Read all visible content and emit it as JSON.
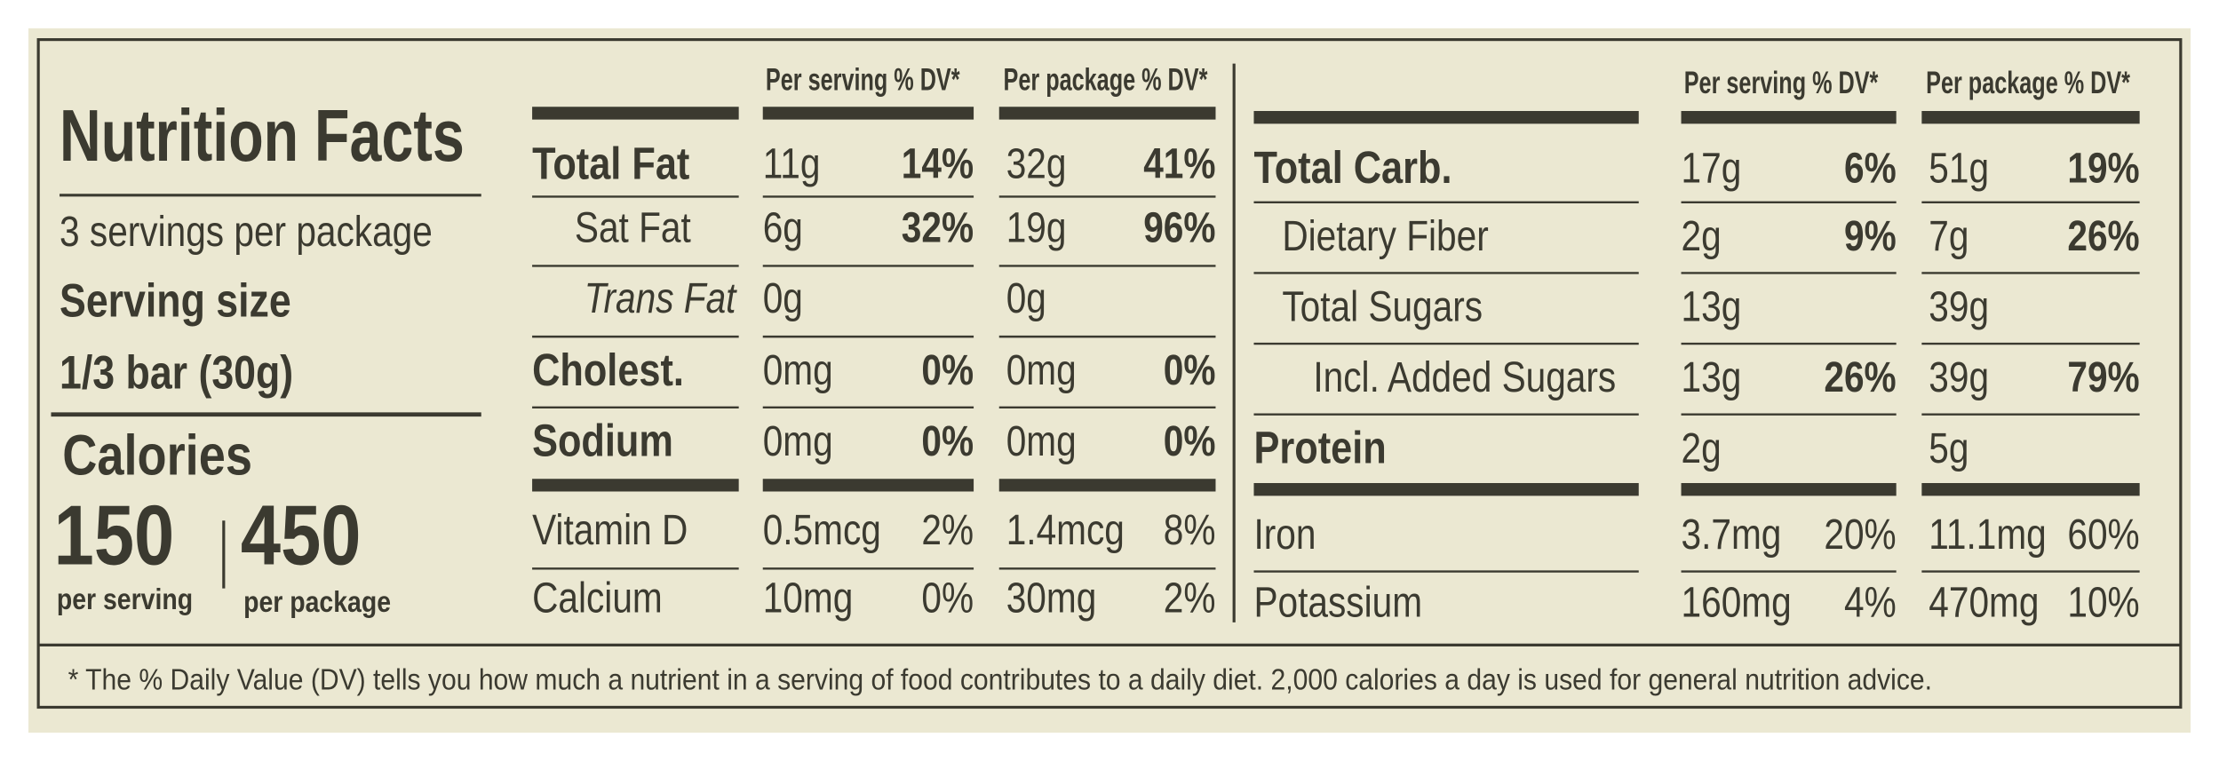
{
  "header": {
    "title": "Nutrition Facts",
    "servings": "3 servings per package",
    "serving_size_label": "Serving size",
    "serving_size": "1/3 bar (30g)",
    "calories_label": "Calories",
    "calories": [
      {
        "amount": "150",
        "unit": "per serving"
      },
      {
        "amount": "450",
        "unit": "per package"
      }
    ]
  },
  "left": {
    "columns": [
      "Per serving % DV*",
      "Per package % DV*"
    ],
    "rows": [
      {
        "name": "Total Fat",
        "serving": [
          "11g",
          "14%"
        ],
        "package": [
          "32g",
          "41%"
        ]
      },
      {
        "name": "Sat Fat",
        "serving": [
          "6g",
          "32%"
        ],
        "package": [
          "19g",
          "96%"
        ]
      },
      {
        "name": "Trans Fat",
        "serving": [
          "0g"
        ],
        "package": [
          "0g"
        ]
      },
      {
        "name": "Cholest.",
        "serving": [
          "0mg",
          "0%"
        ],
        "package": [
          "0mg",
          "0%"
        ]
      },
      {
        "name": "Sodium",
        "serving": [
          "0mg",
          "0%"
        ],
        "package": [
          "0mg",
          "0%"
        ]
      },
      {
        "name": "Vitamin D",
        "serving": [
          "0.5mcg",
          "2%"
        ],
        "package": [
          "1.4mcg",
          "8%"
        ]
      },
      {
        "name": "Calcium",
        "serving": [
          "10mg",
          "0%"
        ],
        "package": [
          "30mg",
          "2%"
        ]
      }
    ]
  },
  "right": {
    "columns": [
      "Per serving % DV*",
      "Per package % DV*"
    ],
    "rows": [
      {
        "name": "Total Carb.",
        "serving": [
          "17g",
          "6%"
        ],
        "package": [
          "51g",
          "19%"
        ]
      },
      {
        "name": "Dietary Fiber",
        "serving": [
          "2g",
          "9%"
        ],
        "package": [
          "7g",
          "26%"
        ]
      },
      {
        "name": "Total Sugars",
        "serving": [
          "13g"
        ],
        "package": [
          "39g"
        ]
      },
      {
        "name": "Incl. Added Sugars",
        "serving": [
          "13g",
          "26%"
        ],
        "package": [
          "39g",
          "79%"
        ]
      },
      {
        "name": "Protein",
        "serving": [
          "2g"
        ],
        "package": [
          "5g"
        ]
      },
      {
        "name": "Iron",
        "serving": [
          "3.7mg",
          "20%"
        ],
        "package": [
          "11.1mg",
          "60%"
        ]
      },
      {
        "name": "Potassium",
        "serving": [
          "160mg",
          "4%"
        ],
        "package": [
          "470mg",
          "10%"
        ]
      }
    ]
  },
  "footnote": "* The % Daily Value (DV) tells you how much a nutrient in a serving of food contributes to a daily diet. 2,000 calories a day is used for general nutrition advice."
}
